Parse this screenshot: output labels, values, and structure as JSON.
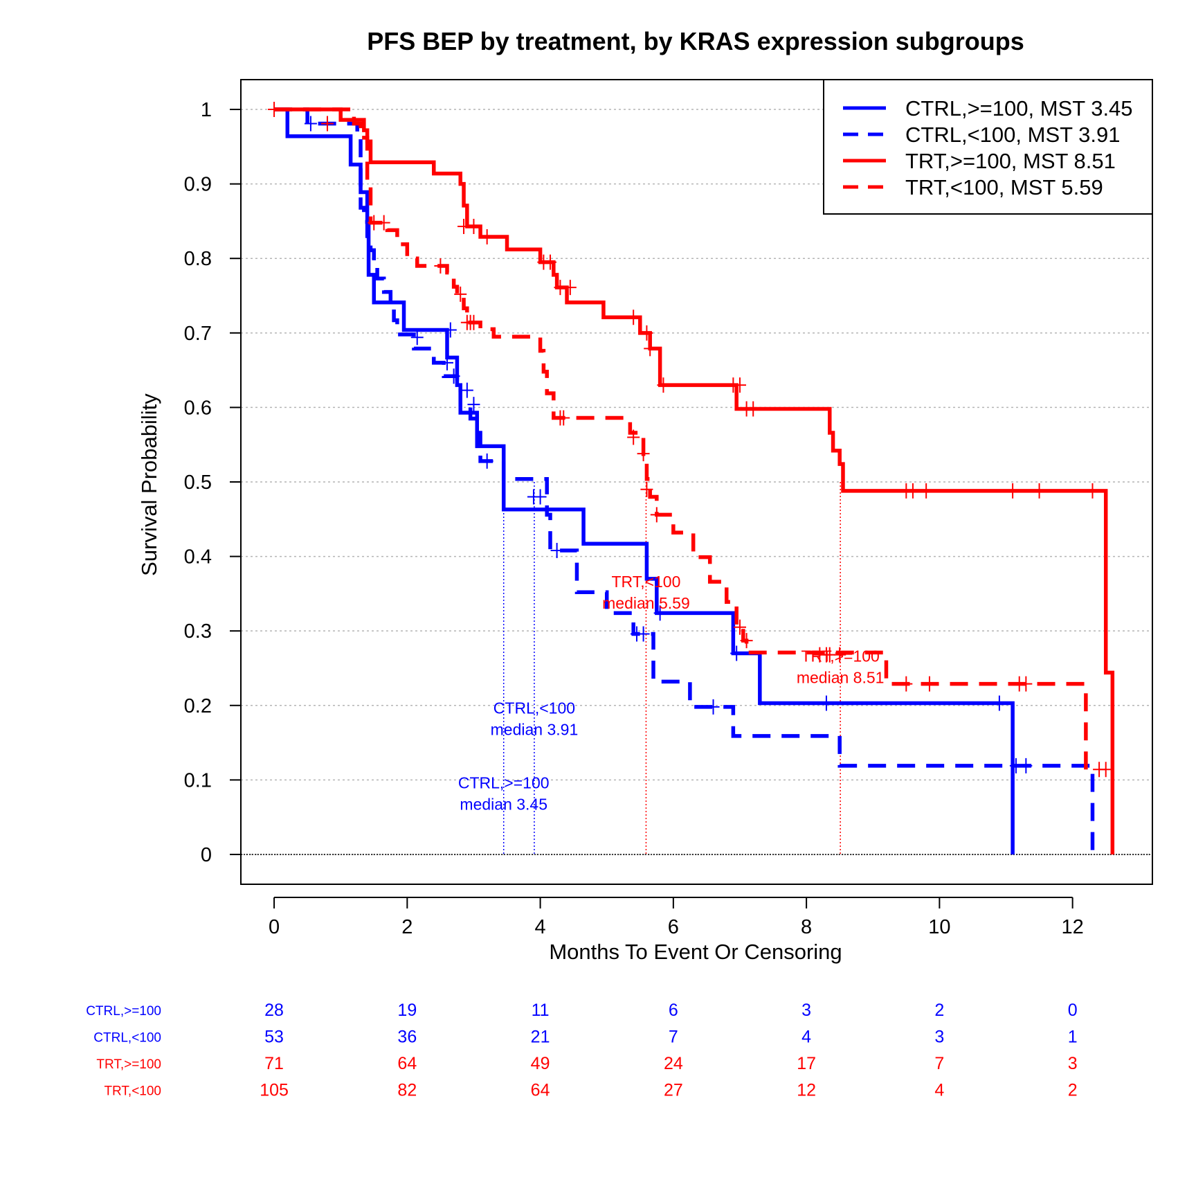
{
  "chart_data": {
    "type": "line",
    "title": "PFS BEP by treatment, by KRAS expression subgroups",
    "xlabel": "Months To Event Or Censoring",
    "ylabel": "Survival Probability",
    "xlim": [
      -0.5,
      13.2
    ],
    "ylim": [
      -0.04,
      1.04
    ],
    "x_ticks": [
      0,
      2,
      4,
      6,
      8,
      10,
      12
    ],
    "y_ticks": [
      0,
      0.1,
      0.2,
      0.3,
      0.4,
      0.5,
      0.6,
      0.7,
      0.8,
      0.9,
      1
    ],
    "y_tick_labels": [
      "0",
      "0.1",
      "0.2",
      "0.3",
      "0.4",
      "0.5",
      "0.6",
      "0.7",
      "0.8",
      "0.9",
      "1"
    ],
    "grid": "horizontal dotted",
    "legend_position": "top-right",
    "series": [
      {
        "name": "CTRL,>=100, MST 3.45",
        "color": "#0000ff",
        "dashed": false,
        "median": 3.45,
        "median_label": [
          "CTRL,>=100",
          "median 3.45"
        ],
        "steps": [
          [
            0,
            1
          ],
          [
            0.2,
            0.964
          ],
          [
            1.15,
            0.926
          ],
          [
            1.3,
            0.889
          ],
          [
            1.4,
            0.852
          ],
          [
            1.42,
            0.778
          ],
          [
            1.5,
            0.741
          ],
          [
            1.95,
            0.704
          ],
          [
            2.6,
            0.667
          ],
          [
            2.75,
            0.63
          ],
          [
            2.8,
            0.593
          ],
          [
            3.05,
            0.548
          ],
          [
            3.45,
            0.463
          ],
          [
            4.65,
            0.417
          ],
          [
            5.6,
            0.37
          ],
          [
            5.75,
            0.324
          ],
          [
            6.9,
            0.27
          ],
          [
            7.3,
            0.203
          ],
          [
            11.1,
            0
          ]
        ],
        "censors": [
          [
            2.65,
            0.704
          ],
          [
            5.8,
            0.324
          ],
          [
            6.95,
            0.27
          ],
          [
            8.3,
            0.203
          ],
          [
            10.9,
            0.203
          ]
        ]
      },
      {
        "name": "CTRL,<100, MST 3.91",
        "color": "#0000ff",
        "dashed": true,
        "median": 3.91,
        "median_label": [
          "CTRL,<100",
          "median 3.91"
        ],
        "steps": [
          [
            0,
            1
          ],
          [
            0.5,
            0.981
          ],
          [
            1.25,
            0.962
          ],
          [
            1.3,
            0.868
          ],
          [
            1.35,
            0.849
          ],
          [
            1.4,
            0.83
          ],
          [
            1.45,
            0.811
          ],
          [
            1.5,
            0.792
          ],
          [
            1.55,
            0.773
          ],
          [
            1.65,
            0.755
          ],
          [
            1.75,
            0.736
          ],
          [
            1.8,
            0.717
          ],
          [
            1.85,
            0.698
          ],
          [
            2.1,
            0.679
          ],
          [
            2.4,
            0.66
          ],
          [
            2.55,
            0.642
          ],
          [
            2.75,
            0.623
          ],
          [
            2.8,
            0.604
          ],
          [
            2.95,
            0.585
          ],
          [
            3.05,
            0.566
          ],
          [
            3.1,
            0.528
          ],
          [
            3.45,
            0.504
          ],
          [
            4.1,
            0.456
          ],
          [
            4.15,
            0.408
          ],
          [
            4.55,
            0.352
          ],
          [
            5,
            0.324
          ],
          [
            5.4,
            0.296
          ],
          [
            5.7,
            0.232
          ],
          [
            6.25,
            0.198
          ],
          [
            6.9,
            0.159
          ],
          [
            8.5,
            0.119
          ],
          [
            12.3,
            0
          ]
        ],
        "censors": [
          [
            0.55,
            0.981
          ],
          [
            2.15,
            0.694
          ],
          [
            2.6,
            0.66
          ],
          [
            2.7,
            0.642
          ],
          [
            2.9,
            0.623
          ],
          [
            3,
            0.604
          ],
          [
            3.2,
            0.528
          ],
          [
            3.9,
            0.48
          ],
          [
            4.0,
            0.48
          ],
          [
            4.25,
            0.408
          ],
          [
            5.45,
            0.296
          ],
          [
            5.55,
            0.296
          ],
          [
            6.6,
            0.198
          ],
          [
            11.15,
            0.119
          ],
          [
            11.3,
            0.119
          ]
        ]
      },
      {
        "name": "TRT,>=100, MST 8.51",
        "color": "#ff0000",
        "dashed": false,
        "median": 8.51,
        "median_label": [
          "TRT,>=100",
          "median 8.51"
        ],
        "steps": [
          [
            0,
            1
          ],
          [
            1,
            0.986
          ],
          [
            1.35,
            0.972
          ],
          [
            1.4,
            0.957
          ],
          [
            1.45,
            0.929
          ],
          [
            2.4,
            0.914
          ],
          [
            2.8,
            0.9
          ],
          [
            2.85,
            0.871
          ],
          [
            2.9,
            0.843
          ],
          [
            3.1,
            0.829
          ],
          [
            3.5,
            0.812
          ],
          [
            4,
            0.795
          ],
          [
            4.2,
            0.778
          ],
          [
            4.25,
            0.761
          ],
          [
            4.4,
            0.741
          ],
          [
            4.95,
            0.721
          ],
          [
            5.5,
            0.7
          ],
          [
            5.65,
            0.679
          ],
          [
            5.8,
            0.63
          ],
          [
            6.95,
            0.598
          ],
          [
            8.35,
            0.566
          ],
          [
            8.4,
            0.542
          ],
          [
            8.5,
            0.524
          ],
          [
            8.55,
            0.488
          ],
          [
            12.5,
            0.244
          ],
          [
            12.6,
            0
          ]
        ],
        "censors": [
          [
            0,
            1
          ],
          [
            2.85,
            0.843
          ],
          [
            3.0,
            0.843
          ],
          [
            3.2,
            0.829
          ],
          [
            4.05,
            0.795
          ],
          [
            4.15,
            0.795
          ],
          [
            4.3,
            0.761
          ],
          [
            4.45,
            0.761
          ],
          [
            5.4,
            0.721
          ],
          [
            5.6,
            0.7
          ],
          [
            5.65,
            0.679
          ],
          [
            5.85,
            0.63
          ],
          [
            6.9,
            0.63
          ],
          [
            7,
            0.63
          ],
          [
            7.1,
            0.598
          ],
          [
            7.2,
            0.598
          ],
          [
            9.5,
            0.488
          ],
          [
            9.6,
            0.488
          ],
          [
            9.8,
            0.488
          ],
          [
            11.1,
            0.488
          ],
          [
            11.5,
            0.488
          ],
          [
            12.3,
            0.488
          ]
        ]
      },
      {
        "name": "TRT,<100, MST 5.59",
        "color": "#ff0000",
        "dashed": true,
        "median": 5.59,
        "median_label": [
          "TRT,<100",
          "median 5.59"
        ],
        "steps": [
          [
            0,
            1
          ],
          [
            1.2,
            0.981
          ],
          [
            1.3,
            0.962
          ],
          [
            1.4,
            0.905
          ],
          [
            1.45,
            0.848
          ],
          [
            1.7,
            0.838
          ],
          [
            1.85,
            0.819
          ],
          [
            2,
            0.8
          ],
          [
            2.15,
            0.79
          ],
          [
            2.6,
            0.781
          ],
          [
            2.7,
            0.762
          ],
          [
            2.75,
            0.752
          ],
          [
            2.85,
            0.733
          ],
          [
            2.9,
            0.714
          ],
          [
            3.1,
            0.705
          ],
          [
            3.3,
            0.695
          ],
          [
            4,
            0.676
          ],
          [
            4.05,
            0.648
          ],
          [
            4.1,
            0.619
          ],
          [
            4.2,
            0.586
          ],
          [
            5.35,
            0.566
          ],
          [
            5.55,
            0.528
          ],
          [
            5.6,
            0.504
          ],
          [
            5.65,
            0.48
          ],
          [
            5.75,
            0.456
          ],
          [
            6,
            0.432
          ],
          [
            6.3,
            0.399
          ],
          [
            6.55,
            0.366
          ],
          [
            6.8,
            0.339
          ],
          [
            6.95,
            0.305
          ],
          [
            7.05,
            0.287
          ],
          [
            7.1,
            0.271
          ],
          [
            9.2,
            0.229
          ],
          [
            12.2,
            0.114
          ]
        ],
        "censors": [
          [
            0.8,
            0.981
          ],
          [
            1.5,
            0.848
          ],
          [
            1.65,
            0.848
          ],
          [
            2.5,
            0.79
          ],
          [
            2.8,
            0.752
          ],
          [
            2.9,
            0.714
          ],
          [
            2.95,
            0.714
          ],
          [
            3,
            0.714
          ],
          [
            4.3,
            0.586
          ],
          [
            4.35,
            0.586
          ],
          [
            5.4,
            0.56
          ],
          [
            5.55,
            0.538
          ],
          [
            5.6,
            0.49
          ],
          [
            5.75,
            0.456
          ],
          [
            7.0,
            0.305
          ],
          [
            7.1,
            0.287
          ],
          [
            8.2,
            0.268
          ],
          [
            8.3,
            0.268
          ],
          [
            8.35,
            0.268
          ],
          [
            8.5,
            0.268
          ],
          [
            9.5,
            0.229
          ],
          [
            9.85,
            0.229
          ],
          [
            11.2,
            0.229
          ],
          [
            11.3,
            0.229
          ],
          [
            12.4,
            0.114
          ],
          [
            12.5,
            0.114
          ]
        ]
      }
    ],
    "risk_table": {
      "times": [
        0,
        2,
        4,
        6,
        8,
        10,
        12
      ],
      "rows": [
        {
          "label": "CTRL,>=100",
          "color": "#0000ff",
          "counts": [
            "28",
            "19",
            "11",
            "6",
            "3",
            "2",
            "0"
          ]
        },
        {
          "label": "CTRL,<100",
          "color": "#0000ff",
          "counts": [
            "53",
            "36",
            "21",
            "7",
            "4",
            "3",
            "1"
          ]
        },
        {
          "label": "TRT,>=100",
          "color": "#ff0000",
          "counts": [
            "71",
            "64",
            "49",
            "24",
            "17",
            "7",
            "3"
          ]
        },
        {
          "label": "TRT,<100",
          "color": "#ff0000",
          "counts": [
            "105",
            "82",
            "64",
            "27",
            "12",
            "4",
            "2"
          ]
        }
      ]
    }
  }
}
